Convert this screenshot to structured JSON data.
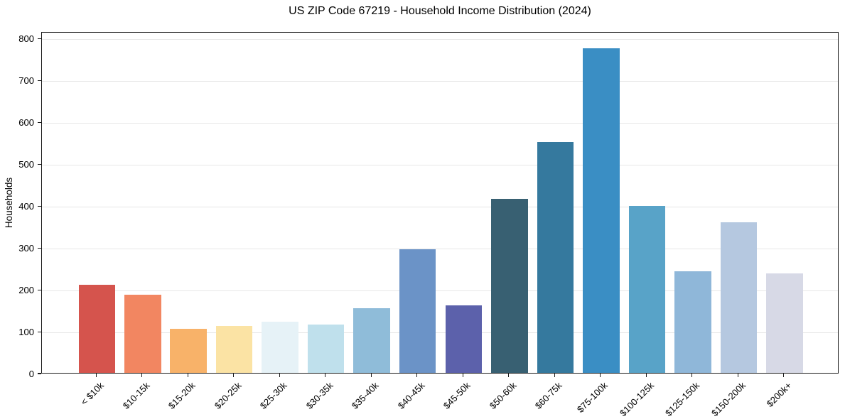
{
  "title": "US ZIP Code 67219 - Household Income Distribution (2024)",
  "chart_data": {
    "type": "bar",
    "title": "US ZIP Code 67219 - Household Income Distribution (2024)",
    "xlabel": "",
    "ylabel": "Households",
    "categories": [
      "< $10k",
      "$10-15k",
      "$15-20k",
      "$20-25k",
      "$25-30k",
      "$30-35k",
      "$35-40k",
      "$40-45k",
      "$45-50k",
      "$50-60k",
      "$60-75k",
      "$75-100k",
      "$100-125k",
      "$125-150k",
      "$150-200k",
      "$200k+"
    ],
    "values": [
      210,
      186,
      105,
      112,
      122,
      116,
      154,
      296,
      162,
      415,
      551,
      776,
      399,
      243,
      360,
      238
    ],
    "bar_colors": [
      "#d5544d",
      "#f28661",
      "#f8b269",
      "#fbe3a4",
      "#e6f2f7",
      "#bfe0ec",
      "#8fbcd9",
      "#6b93c7",
      "#5c61ab",
      "#386072",
      "#35799e",
      "#3a8ec4",
      "#58a3c8",
      "#8fb7d9",
      "#b5c8e0",
      "#d7d9e6"
    ],
    "ylim": [
      0,
      816
    ],
    "yticks": [
      0,
      100,
      200,
      300,
      400,
      500,
      600,
      700,
      800
    ],
    "x_tick_rotation": 45,
    "grid": "horizontal",
    "gridline_color": "#e7e7e7",
    "legend": "none",
    "background_color": "#ffffff"
  }
}
